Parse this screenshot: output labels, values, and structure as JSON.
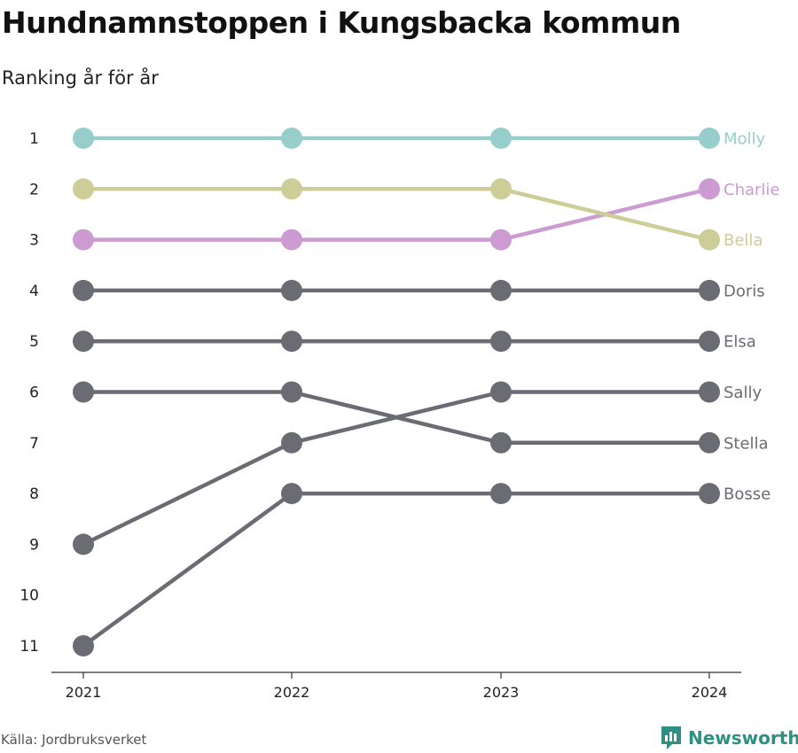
{
  "title": "Hundnamnstoppen i Kungsbacka kommun",
  "subtitle": "Ranking år för år",
  "source": "Källa: Jordbruksverket",
  "brand": {
    "name": "Newsworthy",
    "color": "#2f8f83",
    "icon": "newsworthy-logo-icon"
  },
  "chart_data": {
    "type": "line",
    "title": "Hundnamnstoppen i Kungsbacka kommun",
    "subtitle": "Ranking år för år",
    "x": [
      "2021",
      "2022",
      "2023",
      "2024"
    ],
    "y_ticks": [
      "1",
      "2",
      "3",
      "4",
      "5",
      "6",
      "7",
      "8",
      "9",
      "10",
      "11"
    ],
    "ylim": [
      1,
      11
    ],
    "y_reversed": true,
    "grid": false,
    "series": [
      {
        "name": "Molly",
        "values": [
          1,
          1,
          1,
          1
        ],
        "color": "#97cdcb"
      },
      {
        "name": "Charlie",
        "values": [
          3,
          3,
          3,
          2
        ],
        "color": "#cb9bd1"
      },
      {
        "name": "Bella",
        "values": [
          2,
          2,
          2,
          3
        ],
        "color": "#cdcd98"
      },
      {
        "name": "Doris",
        "values": [
          4,
          4,
          4,
          4
        ],
        "color": "#6b6b73"
      },
      {
        "name": "Elsa",
        "values": [
          5,
          5,
          5,
          5
        ],
        "color": "#6b6b73"
      },
      {
        "name": "Sally",
        "values": [
          9,
          7,
          6,
          6
        ],
        "color": "#6b6b73"
      },
      {
        "name": "Stella",
        "values": [
          6,
          6,
          7,
          7
        ],
        "color": "#6b6b73"
      },
      {
        "name": "Bosse",
        "values": [
          11,
          8,
          8,
          8
        ],
        "color": "#6b6b73"
      }
    ]
  }
}
